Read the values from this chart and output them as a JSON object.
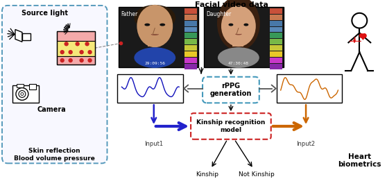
{
  "title": "Facial video data",
  "left_box_label": "Skin reflection\nBlood volume pressure",
  "source_light_label": "Source light",
  "camera_label": "Camera",
  "rppg_label": "rPPG\ngeneration",
  "kinship_label": "Kinship recognition\nmodel",
  "input1_label": "Input1",
  "input2_label": "Input2",
  "kinship_out": "Kinship",
  "not_kinship_out": "Not Kinship",
  "heart_label": "Heart\nbiometrics",
  "father_label": "Father",
  "daughter_label": "Daughter",
  "bg_color": "#ffffff",
  "blue_signal": "#1111bb",
  "orange_signal": "#cc6600",
  "arrow_blue": "#2222cc",
  "arrow_orange": "#cc6600",
  "left_dashed_color": "#5599bb",
  "rppg_dashed_color": "#4499bb",
  "kinship_dashed_color": "#cc2222",
  "face_bg": "#1a1a1a",
  "timecode1": "29:09:56",
  "timecode2": "47:30:48"
}
